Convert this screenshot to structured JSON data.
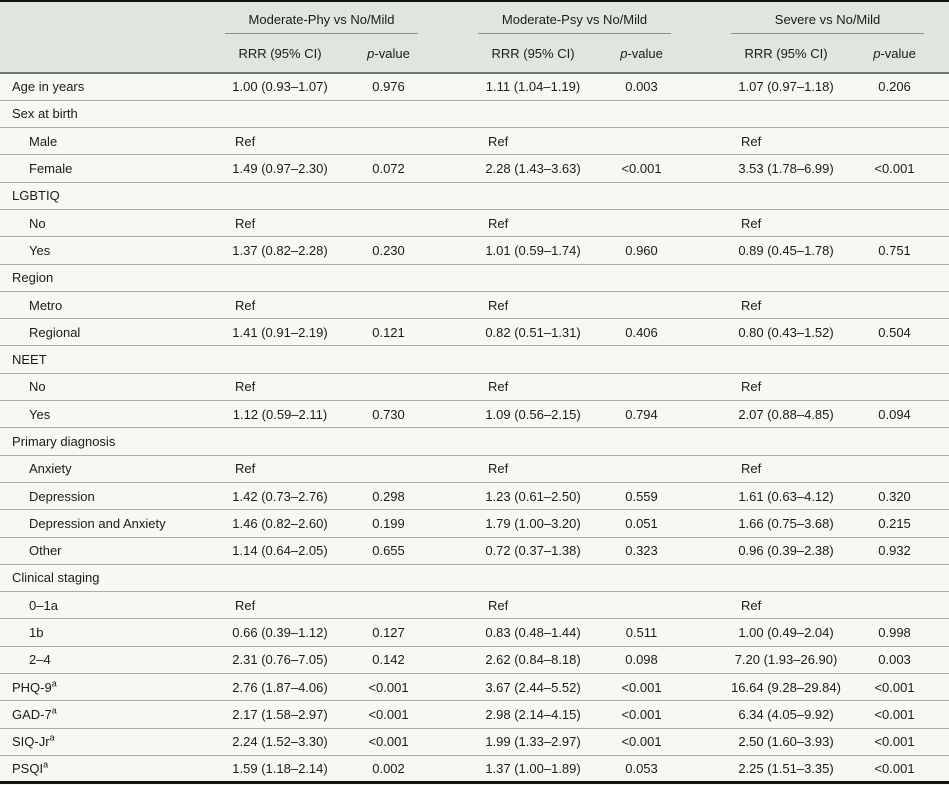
{
  "table": {
    "column_groups": [
      {
        "label": "Moderate-Phy vs No/Mild"
      },
      {
        "label": "Moderate-Psy vs No/Mild"
      },
      {
        "label": "Severe vs No/Mild"
      }
    ],
    "sub_headers": {
      "rrr": "RRR (95% CI)",
      "p_symbol": "p",
      "p_suffix": "-value"
    },
    "rows": [
      {
        "label": "Age in years",
        "type": "data",
        "indent": false,
        "cells": [
          "1.00 (0.93–1.07)",
          "0.976",
          "1.11 (1.04–1.19)",
          "0.003",
          "1.07 (0.97–1.18)",
          "0.206"
        ]
      },
      {
        "label": "Sex at birth",
        "type": "category"
      },
      {
        "label": "Male",
        "type": "data",
        "indent": true,
        "cells": [
          "Ref",
          "",
          "Ref",
          "",
          "Ref",
          ""
        ]
      },
      {
        "label": "Female",
        "type": "data",
        "indent": true,
        "cells": [
          "1.49 (0.97–2.30)",
          "0.072",
          "2.28 (1.43–3.63)",
          "<0.001",
          "3.53 (1.78–6.99)",
          "<0.001"
        ]
      },
      {
        "label": "LGBTIQ",
        "type": "category"
      },
      {
        "label": "No",
        "type": "data",
        "indent": true,
        "cells": [
          "Ref",
          "",
          "Ref",
          "",
          "Ref",
          ""
        ]
      },
      {
        "label": "Yes",
        "type": "data",
        "indent": true,
        "cells": [
          "1.37 (0.82–2.28)",
          "0.230",
          "1.01 (0.59–1.74)",
          "0.960",
          "0.89 (0.45–1.78)",
          "0.751"
        ]
      },
      {
        "label": "Region",
        "type": "category"
      },
      {
        "label": "Metro",
        "type": "data",
        "indent": true,
        "cells": [
          "Ref",
          "",
          "Ref",
          "",
          "Ref",
          ""
        ]
      },
      {
        "label": "Regional",
        "type": "data",
        "indent": true,
        "cells": [
          "1.41 (0.91–2.19)",
          "0.121",
          "0.82 (0.51–1.31)",
          "0.406",
          "0.80 (0.43–1.52)",
          "0.504"
        ]
      },
      {
        "label": "NEET",
        "type": "category"
      },
      {
        "label": "No",
        "type": "data",
        "indent": true,
        "cells": [
          "Ref",
          "",
          "Ref",
          "",
          "Ref",
          ""
        ]
      },
      {
        "label": "Yes",
        "type": "data",
        "indent": true,
        "cells": [
          "1.12 (0.59–2.11)",
          "0.730",
          "1.09 (0.56–2.15)",
          "0.794",
          "2.07 (0.88–4.85)",
          "0.094"
        ]
      },
      {
        "label": "Primary diagnosis",
        "type": "category"
      },
      {
        "label": "Anxiety",
        "type": "data",
        "indent": true,
        "cells": [
          "Ref",
          "",
          "Ref",
          "",
          "Ref",
          ""
        ]
      },
      {
        "label": "Depression",
        "type": "data",
        "indent": true,
        "cells": [
          "1.42 (0.73–2.76)",
          "0.298",
          "1.23 (0.61–2.50)",
          "0.559",
          "1.61 (0.63–4.12)",
          "0.320"
        ]
      },
      {
        "label": "Depression and Anxiety",
        "type": "data",
        "indent": true,
        "cells": [
          "1.46 (0.82–2.60)",
          "0.199",
          "1.79 (1.00–3.20)",
          "0.051",
          "1.66 (0.75–3.68)",
          "0.215"
        ]
      },
      {
        "label": "Other",
        "type": "data",
        "indent": true,
        "cells": [
          "1.14 (0.64–2.05)",
          "0.655",
          "0.72 (0.37–1.38)",
          "0.323",
          "0.96 (0.39–2.38)",
          "0.932"
        ]
      },
      {
        "label": "Clinical staging",
        "type": "category"
      },
      {
        "label": "0–1a",
        "type": "data",
        "indent": true,
        "cells": [
          "Ref",
          "",
          "Ref",
          "",
          "Ref",
          ""
        ]
      },
      {
        "label": "1b",
        "type": "data",
        "indent": true,
        "cells": [
          "0.66 (0.39–1.12)",
          "0.127",
          "0.83 (0.48–1.44)",
          "0.511",
          "1.00 (0.49–2.04)",
          "0.998"
        ]
      },
      {
        "label": "2–4",
        "type": "data",
        "indent": true,
        "cells": [
          "2.31 (0.76–7.05)",
          "0.142",
          "2.62 (0.84–8.18)",
          "0.098",
          "7.20 (1.93–26.90)",
          "0.003"
        ]
      },
      {
        "label": "PHQ-9",
        "sup": "a",
        "type": "data",
        "indent": false,
        "cells": [
          "2.76 (1.87–4.06)",
          "<0.001",
          "3.67 (2.44–5.52)",
          "<0.001",
          "16.64 (9.28–29.84)",
          "<0.001"
        ]
      },
      {
        "label": "GAD-7",
        "sup": "a",
        "type": "data",
        "indent": false,
        "cells": [
          "2.17 (1.58–2.97)",
          "<0.001",
          "2.98 (2.14–4.15)",
          "<0.001",
          "6.34 (4.05–9.92)",
          "<0.001"
        ]
      },
      {
        "label": "SIQ-Jr",
        "sup": "a",
        "type": "data",
        "indent": false,
        "cells": [
          "2.24 (1.52–3.30)",
          "<0.001",
          "1.99 (1.33–2.97)",
          "<0.001",
          "2.50 (1.60–3.93)",
          "<0.001"
        ]
      },
      {
        "label": "PSQI",
        "sup": "a",
        "type": "data",
        "indent": false,
        "cells": [
          "1.59 (1.18–2.14)",
          "0.002",
          "1.37 (1.00–1.89)",
          "0.053",
          "2.25 (1.51–3.35)",
          "<0.001"
        ]
      }
    ],
    "colors": {
      "header_background": "#e0e6dd",
      "body_background": "#f6f8f3",
      "row_line": "#a9aea7",
      "header_divider": "#6f746d",
      "outer_border": "#141414"
    }
  }
}
